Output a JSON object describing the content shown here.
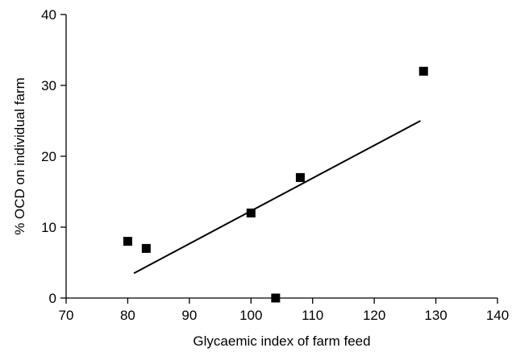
{
  "chart_data": {
    "type": "scatter",
    "title": "",
    "xlabel": "Glycaemic index of farm feed",
    "ylabel": "% OCD on individual farm",
    "xlim": [
      70,
      140
    ],
    "ylim": [
      0,
      40
    ],
    "x_ticks": [
      "70",
      "80",
      "90",
      "100",
      "110",
      "120",
      "130",
      "140"
    ],
    "y_ticks": [
      "0",
      "10",
      "20",
      "30",
      "40"
    ],
    "grid": false,
    "legend": "none",
    "series": [
      {
        "marker": "filled-square",
        "color": "#000000",
        "points": [
          {
            "x": 80,
            "y": 8
          },
          {
            "x": 83,
            "y": 7
          },
          {
            "x": 100,
            "y": 12
          },
          {
            "x": 104,
            "y": 0
          },
          {
            "x": 108,
            "y": 17
          },
          {
            "x": 128,
            "y": 32
          }
        ]
      }
    ],
    "trendline": {
      "type": "linear",
      "color": "#000000",
      "from": {
        "x": 81,
        "y": 3.5
      },
      "to": {
        "x": 127.5,
        "y": 25
      }
    }
  }
}
